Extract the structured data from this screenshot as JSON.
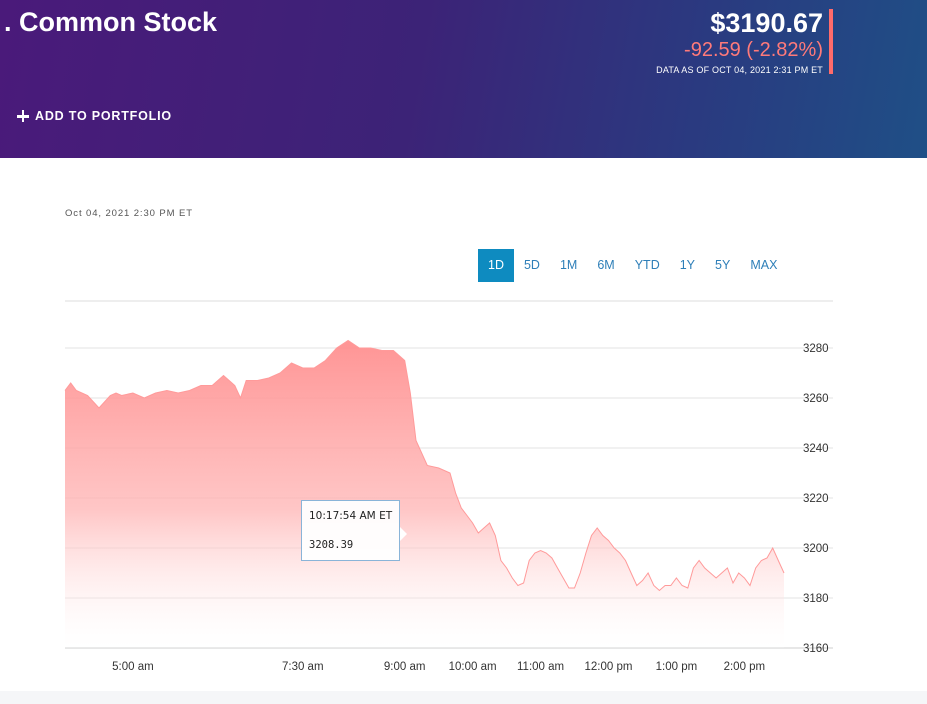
{
  "header": {
    "title": ". Common Stock",
    "price": "$3190.67",
    "change": "-92.59 (-2.82%)",
    "as_of": "DATA AS OF OCT 04, 2021 2:31 PM ET",
    "add_to_portfolio": "ADD TO PORTFOLIO",
    "change_color": "#ff6b6b"
  },
  "chart": {
    "timestamp": "Oct 04, 2021 2:30 PM ET",
    "ranges": [
      {
        "label": "1D",
        "active": true
      },
      {
        "label": "5D",
        "active": false
      },
      {
        "label": "1M",
        "active": false
      },
      {
        "label": "6M",
        "active": false
      },
      {
        "label": "YTD",
        "active": false
      },
      {
        "label": "1Y",
        "active": false
      },
      {
        "label": "5Y",
        "active": false
      },
      {
        "label": "MAX",
        "active": false
      }
    ],
    "tooltip": {
      "time": "10:17:54 AM ET",
      "value": "3208.39"
    }
  },
  "chart_data": {
    "type": "area",
    "title": "",
    "xlabel": "",
    "ylabel": "",
    "ylim": [
      3160,
      3290
    ],
    "yticks": [
      3160,
      3180,
      3200,
      3220,
      3240,
      3260,
      3280
    ],
    "x_tick_labels": [
      "5:00 am",
      "7:30 am",
      "9:00 am",
      "10:00 am",
      "11:00 am",
      "12:00 pm",
      "1:00 pm",
      "2:00 pm"
    ],
    "x_tick_minutes": [
      300,
      450,
      540,
      600,
      660,
      720,
      780,
      840
    ],
    "x_range_minutes": [
      240,
      875
    ],
    "grid": true,
    "color": "#ff9a9a",
    "series": [
      {
        "x": [
          240,
          245,
          250,
          260,
          270,
          280,
          285,
          290,
          300,
          310,
          320,
          330,
          340,
          350,
          360,
          370,
          380,
          390,
          395,
          400,
          410,
          420,
          430,
          440,
          450,
          460,
          470,
          480,
          490,
          500,
          510,
          520,
          530,
          540,
          545,
          550,
          560,
          570,
          580,
          585,
          590,
          595,
          600,
          605,
          610,
          615,
          620,
          625,
          630,
          635,
          640,
          645,
          650,
          655,
          660,
          665,
          670,
          675,
          680,
          685,
          690,
          695,
          700,
          705,
          710,
          715,
          720,
          725,
          730,
          735,
          740,
          745,
          750,
          755,
          760,
          765,
          770,
          775,
          780,
          785,
          790,
          795,
          800,
          805,
          810,
          815,
          820,
          825,
          830,
          835,
          840,
          845,
          850,
          855,
          860,
          865,
          870,
          875
        ],
        "y": [
          3263,
          3266,
          3263,
          3261,
          3256,
          3261,
          3262,
          3261,
          3262,
          3260,
          3262,
          3263,
          3262,
          3263,
          3265,
          3265,
          3269,
          3265,
          3260,
          3267,
          3267,
          3268,
          3270,
          3274,
          3272,
          3272,
          3275,
          3280,
          3283,
          3280,
          3280,
          3279,
          3279,
          3275,
          3262,
          3243,
          3233,
          3232,
          3230,
          3222,
          3216,
          3213,
          3210,
          3206,
          3208,
          3210,
          3205,
          3195,
          3192,
          3188,
          3185,
          3186,
          3195,
          3198,
          3199,
          3198,
          3196,
          3192,
          3188,
          3184,
          3184,
          3190,
          3198,
          3205,
          3208,
          3205,
          3203,
          3200,
          3198,
          3195,
          3190,
          3185,
          3187,
          3190,
          3185,
          3183,
          3185,
          3185,
          3188,
          3185,
          3184,
          3192,
          3195,
          3192,
          3190,
          3188,
          3190,
          3192,
          3186,
          3190,
          3188,
          3185,
          3192,
          3195,
          3196,
          3200,
          3195,
          3190
        ]
      }
    ]
  }
}
